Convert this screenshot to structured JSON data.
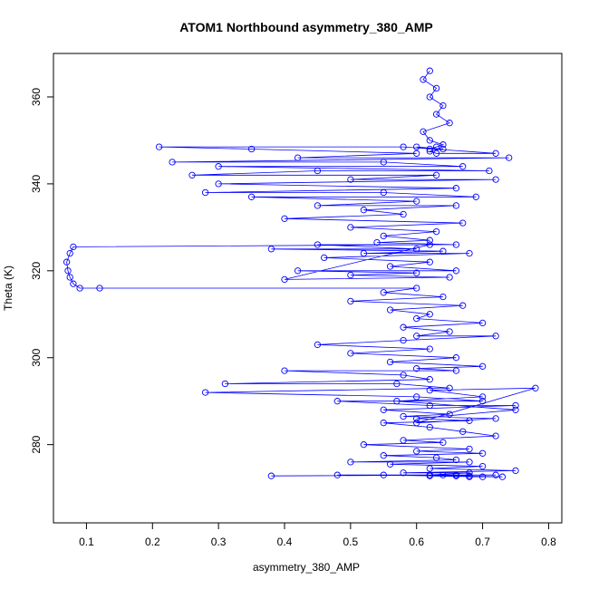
{
  "chart_data": {
    "type": "scatter",
    "title": "ATOM1 Northbound asymmetry_380_AMP",
    "xlabel": "asymmetry_380_AMP",
    "ylabel": "Theta (K)",
    "xlim": [
      0.05,
      0.82
    ],
    "ylim": [
      262,
      370
    ],
    "x_ticks": [
      0.1,
      0.2,
      0.3,
      0.4,
      0.5,
      0.6,
      0.7,
      0.8
    ],
    "y_ticks": [
      280,
      300,
      320,
      340,
      360
    ],
    "x_tick_labels": [
      "0.1",
      "0.2",
      "0.3",
      "0.4",
      "0.5",
      "0.6",
      "0.7",
      "0.8"
    ],
    "y_tick_labels": [
      "280",
      "300",
      "320",
      "340",
      "360"
    ],
    "grid": false,
    "legend": "none",
    "color": "#0000ff",
    "marker": "open-circle",
    "line": true,
    "series": [
      {
        "x": [
          0.62,
          0.61,
          0.63,
          0.62,
          0.64,
          0.63,
          0.65,
          0.61,
          0.62,
          0.64,
          0.63,
          0.62,
          0.6,
          0.64,
          0.62,
          0.63,
          0.72,
          0.58,
          0.21,
          0.35,
          0.6,
          0.42,
          0.74,
          0.23,
          0.55,
          0.67,
          0.3,
          0.71,
          0.45,
          0.26,
          0.63,
          0.5,
          0.72,
          0.3,
          0.66,
          0.28,
          0.55,
          0.69,
          0.35,
          0.6,
          0.45,
          0.66,
          0.52,
          0.58,
          0.4,
          0.67,
          0.5,
          0.63,
          0.55,
          0.62,
          0.54,
          0.66,
          0.45,
          0.6,
          0.38,
          0.64,
          0.52,
          0.68,
          0.46,
          0.62,
          0.56,
          0.66,
          0.42,
          0.6,
          0.5,
          0.65,
          0.4,
          0.62,
          0.08,
          0.075,
          0.07,
          0.072,
          0.075,
          0.08,
          0.09,
          0.12,
          0.6,
          0.55,
          0.64,
          0.5,
          0.67,
          0.56,
          0.62,
          0.6,
          0.7,
          0.58,
          0.65,
          0.6,
          0.72,
          0.58,
          0.45,
          0.62,
          0.5,
          0.66,
          0.56,
          0.7,
          0.6,
          0.66,
          0.4,
          0.58,
          0.62,
          0.31,
          0.57,
          0.65,
          0.28,
          0.6,
          0.7,
          0.48,
          0.62,
          0.75,
          0.55,
          0.65,
          0.58,
          0.72,
          0.6,
          0.78,
          0.62,
          0.7,
          0.57,
          0.75,
          0.6,
          0.68,
          0.55,
          0.62,
          0.67,
          0.72,
          0.58,
          0.64,
          0.52,
          0.68,
          0.6,
          0.7,
          0.55,
          0.63,
          0.66,
          0.5,
          0.68,
          0.56,
          0.7,
          0.62,
          0.75,
          0.58,
          0.68,
          0.62,
          0.72,
          0.48,
          0.66,
          0.38,
          0.64,
          0.68,
          0.55,
          0.7,
          0.62,
          0.73,
          0.66,
          0.68
        ],
        "y": [
          366,
          364,
          362,
          360,
          358,
          356,
          354,
          352,
          350,
          349,
          348.5,
          348,
          348.5,
          348,
          347.5,
          347,
          347,
          348.5,
          348.5,
          348,
          347,
          346,
          346,
          345,
          345,
          344,
          344,
          343,
          343,
          342,
          342,
          341,
          341,
          340,
          339,
          338,
          338,
          337,
          337,
          336,
          335,
          335,
          334,
          333,
          332,
          331,
          330,
          329,
          328,
          327,
          326.5,
          326,
          326,
          325,
          325,
          324.5,
          324,
          324,
          323,
          322,
          321,
          320,
          320,
          319.5,
          319,
          318.5,
          318,
          326,
          325.5,
          324,
          322,
          320,
          318.5,
          317,
          316,
          316,
          316,
          315,
          314,
          313,
          312,
          311,
          310,
          309,
          308,
          307,
          306,
          305,
          305,
          304,
          303,
          302,
          301,
          300,
          299,
          298,
          297.5,
          297,
          297,
          296,
          295,
          294,
          294,
          293,
          292,
          291,
          290,
          290,
          289,
          289,
          288,
          287,
          286.5,
          286,
          285,
          293,
          292.5,
          291,
          290,
          288,
          286,
          285.5,
          285,
          284,
          283,
          282,
          281,
          280.5,
          280,
          279,
          278.5,
          278,
          277.5,
          277,
          276.5,
          276,
          276,
          275.5,
          275,
          274.5,
          274,
          273.5,
          273.5,
          273,
          273,
          273,
          273,
          272.8,
          273,
          272.8,
          273,
          272.6,
          272.8,
          272.6,
          272.8,
          272.6
        ]
      }
    ]
  }
}
